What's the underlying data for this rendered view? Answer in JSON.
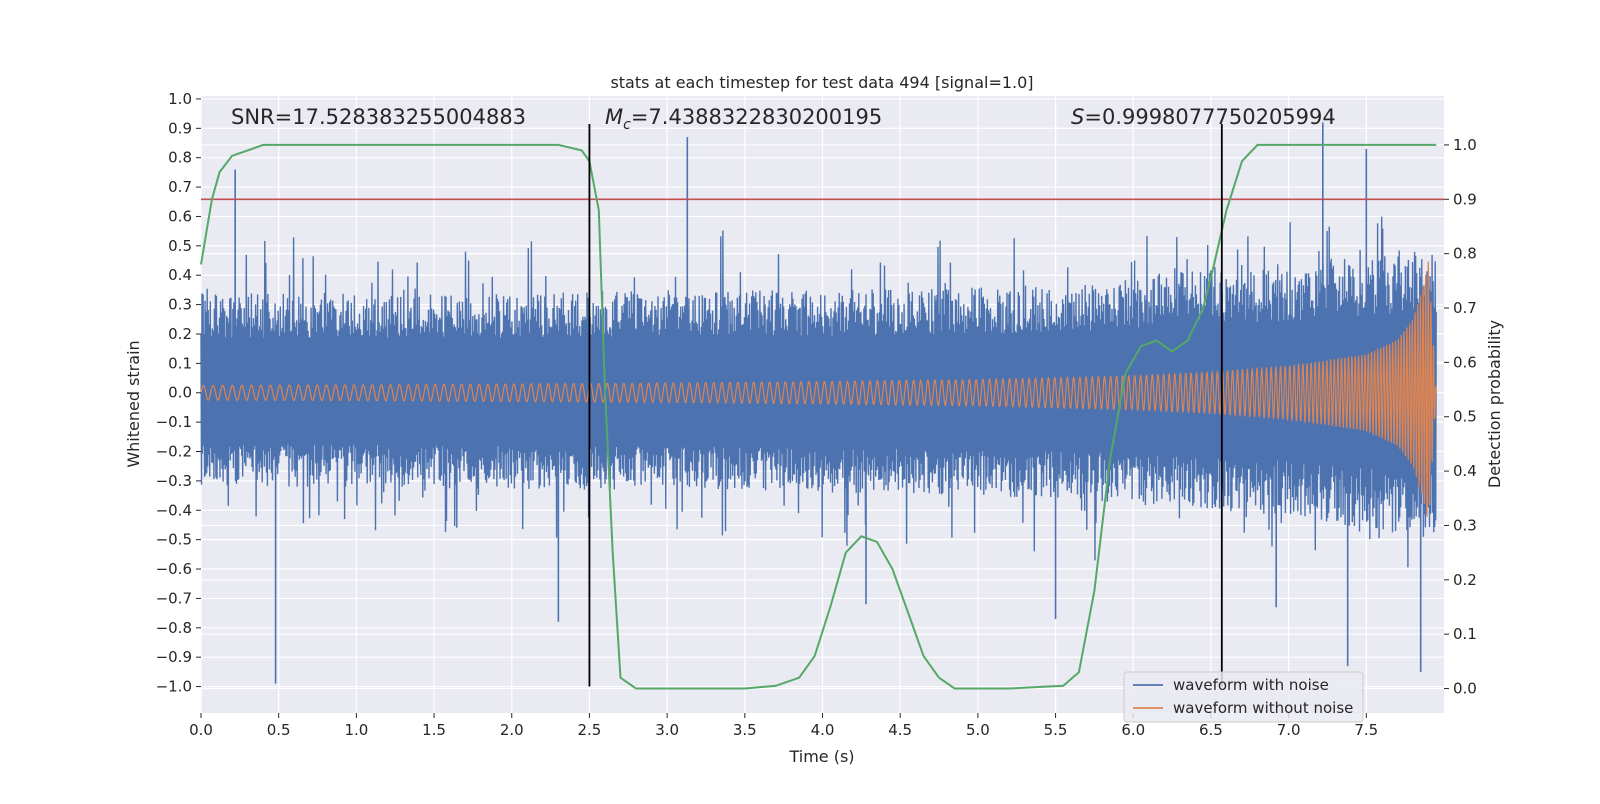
{
  "chart_data": {
    "type": "line",
    "title": "stats at each timestep for test data 494 [signal=1.0]",
    "xlabel": "Time (s)",
    "ylabel": "Whitened strain",
    "y2label": "Detection probability",
    "xlim": [
      0.0,
      8.0
    ],
    "ylim": [
      -1.09,
      1.01
    ],
    "y2lim": [
      -0.045,
      1.09
    ],
    "x_ticks": [
      "0.0",
      "0.5",
      "1.0",
      "1.5",
      "2.0",
      "2.5",
      "3.0",
      "3.5",
      "4.0",
      "4.5",
      "5.0",
      "5.5",
      "6.0",
      "6.5",
      "7.0",
      "7.5"
    ],
    "y_ticks": [
      "1.0",
      "0.9",
      "0.8",
      "0.7",
      "0.6",
      "0.5",
      "0.4",
      "0.3",
      "0.2",
      "0.1",
      "0.0",
      "−0.1",
      "−0.2",
      "−0.3",
      "−0.4",
      "−0.5",
      "−0.6",
      "−0.7",
      "−0.8",
      "−0.9",
      "−1.0"
    ],
    "y2_ticks": [
      "1.0",
      "0.9",
      "0.8",
      "0.7",
      "0.6",
      "0.5",
      "0.4",
      "0.3",
      "0.2",
      "0.1",
      "0.0"
    ],
    "grid": true,
    "legend_placement": "lower-right",
    "annotations": {
      "snr": "SNR=17.528383255004883",
      "mc_symbol": "M",
      "mc_sub": "c",
      "mc_value": "=7.4388322830200195",
      "s_symbol": "S",
      "s_value": "=0.9998077750205994"
    },
    "vertical_lines_x": [
      2.5,
      6.57
    ],
    "threshold_y": 0.9,
    "series": [
      {
        "name": "waveform with noise",
        "color": "#4c72b0",
        "envelope": {
          "x": [
            0.0,
            1.0,
            2.0,
            3.0,
            4.0,
            5.0,
            5.5,
            6.0,
            6.5,
            7.0,
            7.5,
            7.9
          ],
          "upper": [
            0.34,
            0.34,
            0.34,
            0.35,
            0.35,
            0.36,
            0.37,
            0.4,
            0.42,
            0.44,
            0.47,
            0.5
          ],
          "lower": [
            -0.32,
            -0.32,
            -0.33,
            -0.33,
            -0.34,
            -0.35,
            -0.36,
            -0.38,
            -0.4,
            -0.42,
            -0.46,
            -0.5
          ]
        },
        "spikes": [
          {
            "x": 0.22,
            "y": 0.76
          },
          {
            "x": 0.48,
            "y": -0.99
          },
          {
            "x": 2.3,
            "y": -0.78
          },
          {
            "x": 3.13,
            "y": 0.87
          },
          {
            "x": 4.28,
            "y": -0.72
          },
          {
            "x": 5.5,
            "y": -0.77
          },
          {
            "x": 6.92,
            "y": -0.73
          },
          {
            "x": 7.22,
            "y": 0.92
          },
          {
            "x": 7.5,
            "y": 0.83
          },
          {
            "x": 7.38,
            "y": -0.93
          },
          {
            "x": 7.85,
            "y": -0.95
          }
        ]
      },
      {
        "name": "waveform without noise",
        "color": "#dd8452",
        "envelope": {
          "x": [
            0.0,
            1.0,
            2.0,
            3.0,
            4.0,
            5.0,
            6.0,
            6.5,
            7.0,
            7.5,
            7.7,
            7.8,
            7.87,
            7.9,
            7.95
          ],
          "amplitude": [
            0.025,
            0.027,
            0.03,
            0.033,
            0.038,
            0.045,
            0.058,
            0.07,
            0.09,
            0.13,
            0.18,
            0.25,
            0.37,
            0.45,
            0.0
          ]
        },
        "frequency_hz": {
          "x": [
            0.0,
            4.0,
            6.0,
            7.0,
            7.9
          ],
          "value": [
            16,
            20,
            26,
            34,
            60
          ]
        }
      },
      {
        "name": "detection probability",
        "color": "#55a868",
        "axis": "right",
        "x": [
          0.0,
          0.07,
          0.12,
          0.2,
          0.3,
          0.4,
          0.5,
          1.0,
          1.5,
          2.0,
          2.3,
          2.45,
          2.5,
          2.56,
          2.6,
          2.65,
          2.7,
          2.8,
          3.0,
          3.5,
          3.7,
          3.85,
          3.95,
          4.05,
          4.15,
          4.25,
          4.35,
          4.45,
          4.55,
          4.65,
          4.75,
          4.85,
          4.95,
          5.2,
          5.55,
          5.65,
          5.75,
          5.85,
          5.95,
          6.05,
          6.15,
          6.25,
          6.35,
          6.45,
          6.52,
          6.6,
          6.7,
          6.8,
          6.9,
          7.0,
          7.5,
          7.95
        ],
        "y": [
          0.78,
          0.9,
          0.95,
          0.98,
          0.99,
          1.0,
          1.0,
          1.0,
          1.0,
          1.0,
          1.0,
          0.99,
          0.97,
          0.88,
          0.55,
          0.25,
          0.02,
          0.0,
          0.0,
          0.0,
          0.005,
          0.02,
          0.06,
          0.15,
          0.25,
          0.28,
          0.27,
          0.22,
          0.14,
          0.06,
          0.02,
          0.0,
          0.0,
          0.0,
          0.005,
          0.03,
          0.18,
          0.42,
          0.58,
          0.63,
          0.64,
          0.62,
          0.64,
          0.7,
          0.78,
          0.88,
          0.97,
          1.0,
          1.0,
          1.0,
          1.0,
          1.0
        ]
      }
    ]
  }
}
